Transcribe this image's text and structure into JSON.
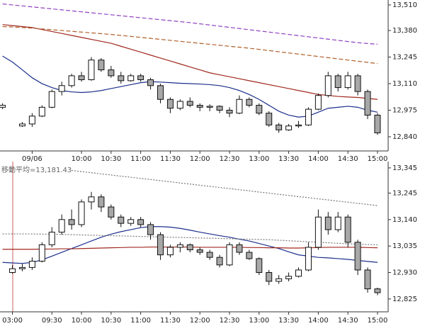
{
  "chart_data": [
    {
      "type": "candlestick",
      "categories": [
        null,
        null,
        null,
        "09/06",
        null,
        null,
        null,
        null,
        "10:00",
        null,
        null,
        "10:30",
        null,
        null,
        "11:00",
        null,
        null,
        "11:30",
        null,
        null,
        "12:00",
        null,
        null,
        "12:30",
        null,
        null,
        "13:00",
        null,
        null,
        "13:30",
        null,
        null,
        "14:00",
        null,
        null,
        "14:30",
        null,
        null,
        "15:00"
      ],
      "ohlc": [
        [
          12990,
          13010,
          12980,
          13000
        ],
        null,
        [
          12895,
          12915,
          12890,
          12905
        ],
        [
          12905,
          12960,
          12890,
          12945
        ],
        [
          12945,
          13000,
          12940,
          12990
        ],
        [
          12990,
          13080,
          12985,
          13070
        ],
        [
          13070,
          13120,
          13050,
          13100
        ],
        [
          13100,
          13160,
          13090,
          13150
        ],
        [
          13150,
          13170,
          13120,
          13130
        ],
        [
          13130,
          13245,
          13125,
          13230
        ],
        [
          13230,
          13240,
          13170,
          13180
        ],
        [
          13180,
          13200,
          13140,
          13150
        ],
        [
          13150,
          13170,
          13110,
          13125
        ],
        [
          13125,
          13160,
          13120,
          13150
        ],
        [
          13150,
          13160,
          13120,
          13130
        ],
        [
          13130,
          13140,
          13080,
          13100
        ],
        [
          13100,
          13110,
          13010,
          13030
        ],
        [
          13030,
          13040,
          12960,
          12985
        ],
        [
          12985,
          13030,
          12975,
          13020
        ],
        [
          13020,
          13040,
          12990,
          13000
        ],
        [
          13000,
          13010,
          12970,
          12990
        ],
        [
          12990,
          13005,
          12970,
          12995
        ],
        [
          12995,
          13000,
          12960,
          12975
        ],
        [
          12975,
          12990,
          12940,
          12960
        ],
        [
          12960,
          13050,
          12955,
          13030
        ],
        [
          13030,
          13040,
          12990,
          13000
        ],
        [
          13000,
          13010,
          12950,
          12960
        ],
        [
          12960,
          12970,
          12890,
          12900
        ],
        [
          12900,
          12910,
          12860,
          12875
        ],
        [
          12875,
          12905,
          12870,
          12895
        ],
        [
          12895,
          12920,
          12885,
          12900
        ],
        [
          12900,
          12990,
          12895,
          12980
        ],
        [
          12980,
          13060,
          12975,
          13050
        ],
        [
          13050,
          13170,
          13040,
          13150
        ],
        [
          13150,
          13160,
          13070,
          13090
        ],
        [
          13090,
          13170,
          13080,
          13150
        ],
        [
          13150,
          13160,
          13050,
          13070
        ],
        [
          13070,
          13080,
          12930,
          12950
        ],
        [
          12950,
          12960,
          12850,
          12860
        ]
      ],
      "up_color": "#ffffff",
      "down_color": "#a8a8a8",
      "lines": [
        {
          "color": "#1c2f8c",
          "style": "solid",
          "values": [
            13250,
            13220,
            13180,
            13140,
            13110,
            13090,
            13075,
            13068,
            13065,
            13068,
            13075,
            13085,
            13095,
            13105,
            13115,
            13120,
            13118,
            13115,
            13112,
            13110,
            13108,
            13105,
            13100,
            13090,
            13075,
            13055,
            13030,
            13000,
            12970,
            12950,
            12940,
            12945,
            12965,
            12985,
            12990,
            12995,
            12990,
            12975,
            12965
          ]
        },
        {
          "color": "#a0281e",
          "style": "solid",
          "values": [
            13410,
            13405,
            13400,
            13395,
            13385,
            13375,
            13365,
            13355,
            13345,
            13335,
            13325,
            13315,
            13300,
            13285,
            13270,
            13255,
            13240,
            13225,
            13210,
            13195,
            13180,
            13165,
            13155,
            13145,
            13135,
            13125,
            13115,
            13105,
            13095,
            13085,
            13075,
            13065,
            13055,
            13050,
            13045,
            13042,
            13040,
            13035,
            13030
          ]
        },
        {
          "color": "#b0602a",
          "style": "dashed",
          "values": [
            13400,
            13398,
            13395,
            13392,
            13388,
            13384,
            13380,
            13376,
            13372,
            13368,
            13364,
            13360,
            13355,
            13350,
            13345,
            13340,
            13335,
            13330,
            13325,
            13320,
            13315,
            13310,
            13305,
            13300,
            13295,
            13290,
            13284,
            13278,
            13272,
            13266,
            13260,
            13254,
            13248,
            13242,
            13236,
            13230,
            13224,
            13218,
            13212
          ]
        },
        {
          "color": "#9040c0",
          "style": "dashed",
          "values": [
            13515,
            13510,
            13505,
            13500,
            13495,
            13490,
            13485,
            13480,
            13475,
            13470,
            13465,
            13460,
            13455,
            13450,
            13445,
            13440,
            13435,
            13430,
            13425,
            13420,
            13414,
            13408,
            13402,
            13396,
            13390,
            13384,
            13378,
            13372,
            13366,
            13360,
            13354,
            13348,
            13342,
            13336,
            13330,
            13324,
            13318,
            13314,
            13310
          ]
        }
      ],
      "ylim": [
        12768,
        13535
      ],
      "yticks": [
        {
          "value": 12840,
          "label": "12,840"
        },
        {
          "value": 12975,
          "label": "12,975"
        },
        {
          "value": 13110,
          "label": "13,110"
        },
        {
          "value": 13245,
          "label": "13,245"
        },
        {
          "value": 13380,
          "label": "13,380"
        },
        {
          "value": 13510,
          "label": "13,510"
        }
      ]
    },
    {
      "type": "candlestick",
      "annotation": "移動平均=13,181.43",
      "categories": [
        null,
        "03:00",
        null,
        null,
        null,
        "09:30",
        null,
        null,
        "10:00",
        null,
        null,
        "10:30",
        null,
        null,
        "11:00",
        null,
        null,
        "11:30",
        null,
        null,
        "12:00",
        null,
        null,
        "12:30",
        null,
        null,
        "13:00",
        null,
        null,
        "13:30",
        null,
        null,
        "14:00",
        null,
        null,
        "14:30",
        null,
        null,
        "15:00"
      ],
      "ohlc": [
        null,
        [
          12930,
          12960,
          12925,
          12945
        ],
        [
          12945,
          12965,
          12935,
          12950
        ],
        [
          12950,
          12990,
          12940,
          12975
        ],
        [
          12975,
          13050,
          12970,
          13040
        ],
        [
          13040,
          13110,
          13030,
          13090
        ],
        [
          13090,
          13160,
          13080,
          13140
        ],
        [
          13140,
          13180,
          13100,
          13120
        ],
        [
          13120,
          13220,
          13110,
          13210
        ],
        [
          13210,
          13250,
          13180,
          13230
        ],
        [
          13230,
          13240,
          13170,
          13190
        ],
        [
          13190,
          13200,
          13140,
          13150
        ],
        [
          13150,
          13160,
          13110,
          13125
        ],
        [
          13125,
          13150,
          13115,
          13140
        ],
        [
          13140,
          13150,
          13110,
          13120
        ],
        [
          13120,
          13130,
          13060,
          13080
        ],
        [
          13080,
          13090,
          12980,
          13000
        ],
        [
          13000,
          13040,
          12990,
          13030
        ],
        [
          13030,
          13050,
          13010,
          13040
        ],
        [
          13040,
          13045,
          13010,
          13020
        ],
        [
          13020,
          13030,
          13000,
          13010
        ],
        [
          13010,
          13020,
          12980,
          12990
        ],
        [
          12990,
          13000,
          12950,
          12960
        ],
        [
          12960,
          13050,
          12955,
          13040
        ],
        [
          13040,
          13050,
          13000,
          13010
        ],
        [
          13010,
          13020,
          12980,
          12985
        ],
        [
          12985,
          12990,
          12920,
          12930
        ],
        [
          12930,
          12940,
          12880,
          12895
        ],
        [
          12895,
          12920,
          12885,
          12905
        ],
        [
          12905,
          12930,
          12895,
          12915
        ],
        [
          12915,
          12950,
          12910,
          12940
        ],
        [
          12940,
          13050,
          12935,
          13030
        ],
        [
          13030,
          13180,
          13020,
          13150
        ],
        [
          13150,
          13170,
          13080,
          13100
        ],
        [
          13100,
          13170,
          13090,
          13150
        ],
        [
          13150,
          13160,
          13030,
          13050
        ],
        [
          13050,
          13060,
          12920,
          12940
        ],
        [
          12940,
          12950,
          12850,
          12865
        ],
        [
          12865,
          12870,
          12840,
          12850
        ]
      ],
      "up_color": "#ffffff",
      "down_color": "#a8a8a8",
      "lines": [
        {
          "color": "#1c2f8c",
          "style": "solid",
          "values": [
            12970,
            12968,
            12966,
            12970,
            12980,
            12995,
            13010,
            13025,
            13040,
            13055,
            13070,
            13082,
            13092,
            13100,
            13108,
            13112,
            13112,
            13110,
            13105,
            13098,
            13090,
            13083,
            13076,
            13070,
            13062,
            13055,
            13045,
            13035,
            13025,
            13012,
            13000,
            12995,
            12990,
            12988,
            12985,
            12982,
            12978,
            12974,
            12970
          ]
        },
        {
          "color": "#a0281e",
          "style": "solid",
          "values": [
            13022,
            13022,
            13022,
            13022,
            13023,
            13023,
            13024,
            13024,
            13025,
            13026,
            13027,
            13028,
            13029,
            13030,
            13030,
            13031,
            13031,
            13031,
            13031,
            13031,
            13030,
            13030,
            13030,
            13030,
            13030,
            13029,
            13029,
            13028,
            13028,
            13027,
            13027,
            13028,
            13029,
            13030,
            13030,
            13030,
            13030,
            13029,
            13028
          ]
        },
        {
          "color": "#777777",
          "style": "dotted",
          "values": [
            13083,
            13083,
            13083,
            13083,
            13082,
            13082,
            13081,
            13080,
            13079,
            13078,
            13077,
            13076,
            13075,
            13074,
            13073,
            13072,
            13071,
            13070,
            13069,
            13068,
            13067,
            13066,
            13065,
            13064,
            13063,
            13062,
            13061,
            13060,
            13058,
            13056,
            13054,
            13052,
            13050,
            13048,
            13046,
            13044,
            13042,
            13041,
            13040
          ]
        },
        {
          "color": "#777777",
          "style": "dotted",
          "values": [
            null,
            null,
            null,
            null,
            null,
            null,
            null,
            13335,
            13330,
            13326,
            13321,
            13317,
            13312,
            13308,
            13303,
            13299,
            13294,
            13290,
            13285,
            13281,
            13276,
            13272,
            13267,
            13263,
            13258,
            13254,
            13249,
            13245,
            13240,
            13236,
            13231,
            13227,
            13222,
            13218,
            13213,
            13209,
            13204,
            13200,
            13195
          ]
        }
      ],
      "ylim": [
        12774,
        13370
      ],
      "yticks": [
        {
          "value": 12825,
          "label": "12,825"
        },
        {
          "value": 12930,
          "label": "12,930"
        },
        {
          "value": 13035,
          "label": "13,035"
        },
        {
          "value": 13140,
          "label": "13,140"
        },
        {
          "value": 13245,
          "label": "13,245"
        },
        {
          "value": 13345,
          "label": "13,345"
        }
      ]
    }
  ]
}
